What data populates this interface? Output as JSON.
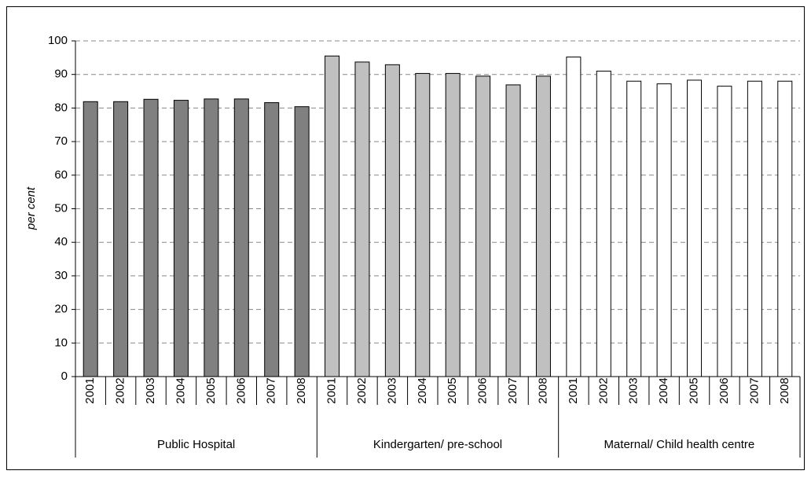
{
  "chart_data": {
    "type": "bar",
    "y_label": "per cent",
    "ylim": [
      0,
      100
    ],
    "yticks": [
      0,
      10,
      20,
      30,
      40,
      50,
      60,
      70,
      80,
      90,
      100
    ],
    "grid": true,
    "groups": [
      {
        "name": "Public Hospital",
        "color": "#808080",
        "categories": [
          "2001",
          "2002",
          "2003",
          "2004",
          "2005",
          "2006",
          "2007",
          "2008"
        ],
        "values": [
          81.9,
          81.9,
          82.6,
          82.3,
          82.7,
          82.7,
          81.6,
          80.4
        ]
      },
      {
        "name": "Kindergarten/ pre-school",
        "color": "#c0c0c0",
        "categories": [
          "2001",
          "2002",
          "2003",
          "2004",
          "2005",
          "2006",
          "2007",
          "2008"
        ],
        "values": [
          95.5,
          93.7,
          92.9,
          90.3,
          90.3,
          89.5,
          86.9,
          89.5
        ]
      },
      {
        "name": "Maternal/ Child health centre",
        "color": "#ffffff",
        "categories": [
          "2001",
          "2002",
          "2003",
          "2004",
          "2005",
          "2006",
          "2007",
          "2008"
        ],
        "values": [
          95.2,
          91.0,
          88.0,
          87.2,
          88.3,
          86.5,
          88.0,
          88.0
        ]
      }
    ]
  }
}
